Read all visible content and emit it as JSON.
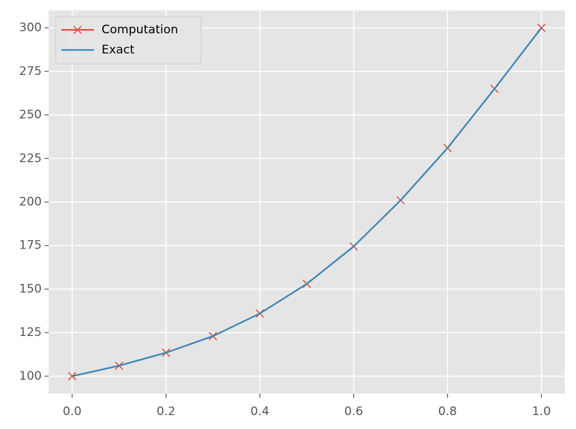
{
  "chart_data": {
    "type": "line",
    "x": [
      0,
      0.1,
      0.2,
      0.3,
      0.4,
      0.5,
      0.6,
      0.7,
      0.8,
      0.9,
      1
    ],
    "series": [
      {
        "name": "Computation",
        "color": "#E24A33",
        "marker": "x",
        "values": [
          100,
          106,
          113.5,
          123,
          136,
          153,
          174.5,
          201,
          231,
          265,
          300
        ]
      },
      {
        "name": "Exact",
        "color": "#348ABD",
        "values": [
          100,
          106,
          113.5,
          123,
          136,
          153,
          174.5,
          201,
          231,
          265,
          300
        ]
      }
    ],
    "xlim": [
      -0.05,
      1.05
    ],
    "ylim": [
      90,
      310
    ],
    "xticks": [
      {
        "value": 0,
        "label": "0.0"
      },
      0.2,
      0.4,
      0.6,
      0.8,
      {
        "value": 1,
        "label": "1.0"
      }
    ],
    "yticks": [
      100,
      125,
      150,
      175,
      200,
      225,
      250,
      275,
      300
    ],
    "grid": true,
    "legend": "upper left"
  }
}
